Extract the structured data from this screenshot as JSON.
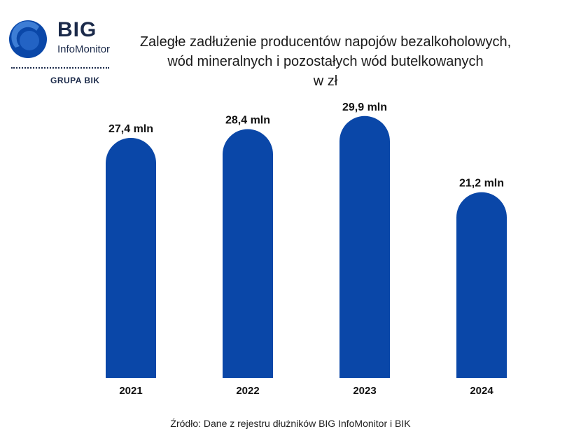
{
  "logo": {
    "brand": "BIG",
    "sub": "InfoMonitor",
    "group": "GRUPA BIK"
  },
  "title": {
    "line1": "Zaległe zadłużenie producentów napojów bezalkoholowych,",
    "line2": "wód mineralnych i pozostałych wód butelkowanych",
    "line3": "w zł"
  },
  "chart_data": {
    "type": "bar",
    "categories": [
      "2021",
      "2022",
      "2023",
      "2024"
    ],
    "values": [
      27.4,
      28.4,
      29.9,
      21.2
    ],
    "data_labels": [
      "27,4 mln",
      "28,4 mln",
      "29,9 mln",
      "21,2 mln"
    ],
    "unit": "mln zł",
    "ylim": [
      0,
      30.2
    ],
    "grid": false,
    "legend": "none",
    "bar_color": "#0a47a8"
  },
  "source": "Źródło: Dane z rejestru dłużników BIG InfoMonitor i BIK"
}
